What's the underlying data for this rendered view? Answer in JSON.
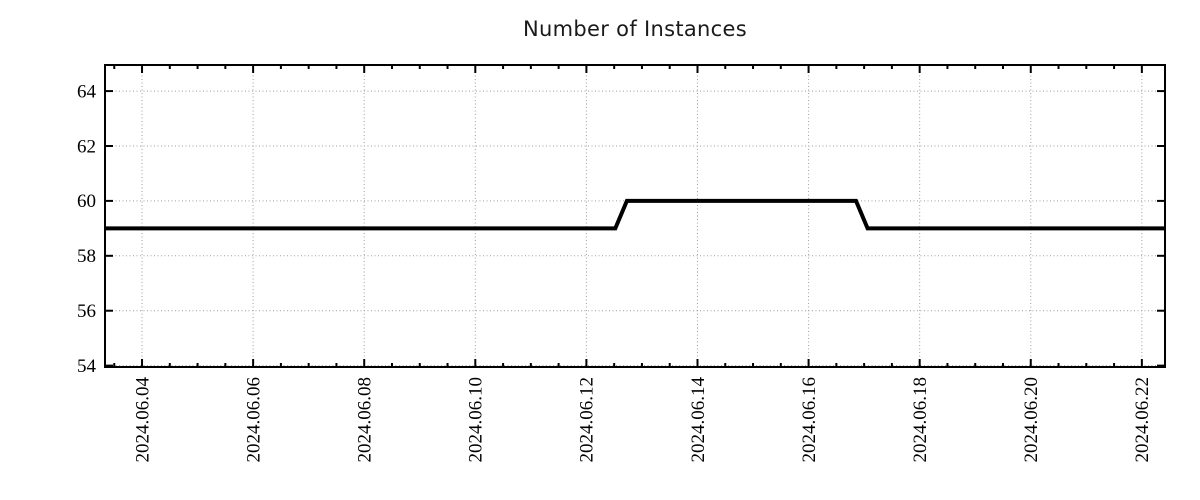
{
  "chart": {
    "title": "Number of Instances"
  },
  "chart_data": {
    "type": "line",
    "title": "Number of Instances",
    "xlabel": "",
    "ylabel": "",
    "grid": true,
    "legend": "none",
    "xlim": [
      "2024-06-03 08:00",
      "2024-06-22 10:00"
    ],
    "ylim": [
      53.95,
      64.95
    ],
    "yticks": [
      54,
      56,
      58,
      60,
      62,
      64
    ],
    "xticks": [
      "2024.06.04",
      "2024.06.06",
      "2024.06.08",
      "2024.06.10",
      "2024.06.12",
      "2024.06.14",
      "2024.06.16",
      "2024.06.18",
      "2024.06.20",
      "2024.06.22"
    ],
    "x_minor_step_days": 0.5,
    "series": [
      {
        "name": "instances",
        "color": "#000000",
        "points": [
          {
            "t": "2024-06-03 08:00",
            "v": 59
          },
          {
            "t": "2024-06-12 12:30",
            "v": 59
          },
          {
            "t": "2024-06-12 17:30",
            "v": 60
          },
          {
            "t": "2024-06-16 20:30",
            "v": 60
          },
          {
            "t": "2024-06-17 01:30",
            "v": 59
          },
          {
            "t": "2024-06-22 10:00",
            "v": 59
          }
        ]
      }
    ],
    "colors": {
      "line": "#000000",
      "grid": "#9e9e9e",
      "axis": "#000000",
      "text": "#000000",
      "title": "#1a1a1a"
    }
  }
}
